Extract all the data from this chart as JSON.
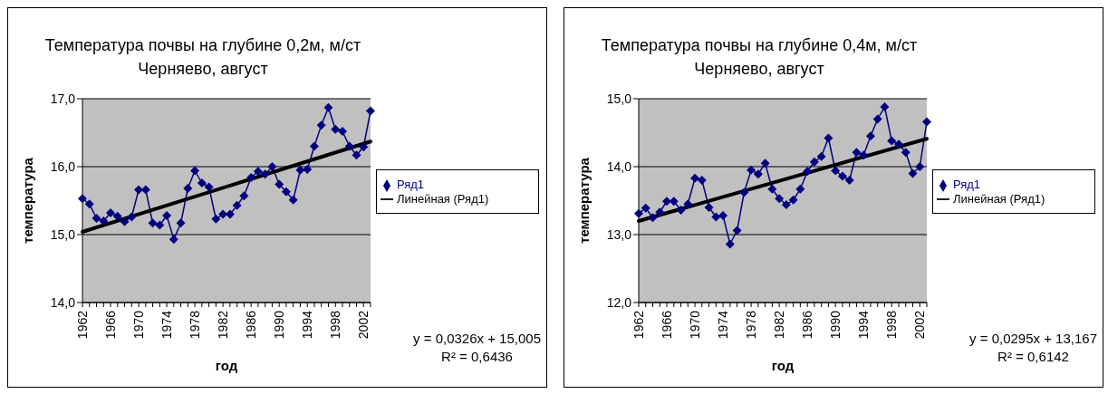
{
  "chart_data": [
    {
      "type": "line",
      "title": "Температура почвы на глубине 0,2м, м/ст\nЧерняево, август",
      "xlabel": "год",
      "ylabel": "температура",
      "categories": [
        "1962",
        null,
        null,
        null,
        "1966",
        null,
        null,
        null,
        "1970",
        null,
        null,
        null,
        "1974",
        null,
        null,
        null,
        "1978",
        null,
        null,
        null,
        "1982",
        null,
        null,
        null,
        "1986",
        null,
        null,
        null,
        "1990",
        null,
        null,
        null,
        "1994",
        null,
        null,
        null,
        "1998",
        null,
        null,
        null,
        "2002",
        null
      ],
      "series": [
        {
          "name": "Ряд1",
          "color": "#000080",
          "marker": "diamond",
          "values": [
            15.53,
            15.45,
            15.24,
            15.2,
            15.32,
            15.27,
            15.19,
            15.26,
            15.66,
            15.66,
            15.17,
            15.14,
            15.28,
            14.93,
            15.17,
            15.68,
            15.94,
            15.76,
            15.7,
            15.23,
            15.3,
            15.3,
            15.43,
            15.57,
            15.84,
            15.93,
            15.89,
            16.0,
            15.74,
            15.63,
            15.51,
            15.95,
            15.96,
            16.3,
            16.61,
            16.87,
            16.55,
            16.52,
            16.3,
            16.17,
            16.29,
            16.82
          ]
        },
        {
          "name": "Линейная (Ряд1)",
          "color": "#000000",
          "marker": "none",
          "values": [
            15.04,
            null,
            null,
            null,
            null,
            null,
            null,
            null,
            null,
            null,
            null,
            null,
            null,
            null,
            null,
            null,
            null,
            null,
            null,
            null,
            null,
            null,
            null,
            null,
            null,
            null,
            null,
            null,
            null,
            null,
            null,
            null,
            null,
            null,
            null,
            null,
            null,
            null,
            null,
            null,
            null,
            16.37
          ]
        }
      ],
      "ylim": [
        14,
        17
      ],
      "yticks": [
        {
          "value": 14,
          "label": "14,0"
        },
        {
          "value": 15,
          "label": "15,0"
        },
        {
          "value": 16,
          "label": "16,0"
        },
        {
          "value": 17,
          "label": "17,0"
        }
      ],
      "grid": "y",
      "legend": "right",
      "line_style": "solid",
      "annotations": [
        "y = 0,0326x + 15,005",
        "R² = 0,6436"
      ]
    },
    {
      "type": "line",
      "title": "Температура почвы на глубине 0,4м, м/ст\nЧерняево, август",
      "xlabel": "год",
      "ylabel": "температура",
      "categories": [
        "1962",
        null,
        null,
        null,
        "1966",
        null,
        null,
        null,
        "1970",
        null,
        null,
        null,
        "1974",
        null,
        null,
        null,
        "1978",
        null,
        null,
        null,
        "1982",
        null,
        null,
        null,
        "1986",
        null,
        null,
        null,
        "1990",
        null,
        null,
        null,
        "1994",
        null,
        null,
        null,
        "1998",
        null,
        null,
        null,
        "2002",
        null
      ],
      "series": [
        {
          "name": "Ряд1",
          "color": "#000080",
          "marker": "diamond",
          "values": [
            13.31,
            13.39,
            13.25,
            13.33,
            13.49,
            13.49,
            13.36,
            13.45,
            13.83,
            13.8,
            13.4,
            13.26,
            13.28,
            12.86,
            13.06,
            13.62,
            13.95,
            13.89,
            14.05,
            13.67,
            13.53,
            13.44,
            13.51,
            13.67,
            13.93,
            14.07,
            14.15,
            14.42,
            13.94,
            13.86,
            13.8,
            14.21,
            14.17,
            14.45,
            14.7,
            14.88,
            14.38,
            14.33,
            14.21,
            13.9,
            14.0,
            14.66
          ]
        },
        {
          "name": "Линейная (Ряд1)",
          "color": "#000000",
          "marker": "none",
          "values": [
            13.2,
            null,
            null,
            null,
            null,
            null,
            null,
            null,
            null,
            null,
            null,
            null,
            null,
            null,
            null,
            null,
            null,
            null,
            null,
            null,
            null,
            null,
            null,
            null,
            null,
            null,
            null,
            null,
            null,
            null,
            null,
            null,
            null,
            null,
            null,
            null,
            null,
            null,
            null,
            null,
            null,
            14.41
          ]
        }
      ],
      "ylim": [
        12,
        15
      ],
      "yticks": [
        {
          "value": 12,
          "label": "12,0"
        },
        {
          "value": 13,
          "label": "13,0"
        },
        {
          "value": 14,
          "label": "14,0"
        },
        {
          "value": 15,
          "label": "15,0"
        }
      ],
      "grid": "y",
      "legend": "right",
      "line_style": "solid",
      "annotations": [
        "y = 0,0295x + 13,167",
        "R² = 0,6142"
      ]
    }
  ]
}
